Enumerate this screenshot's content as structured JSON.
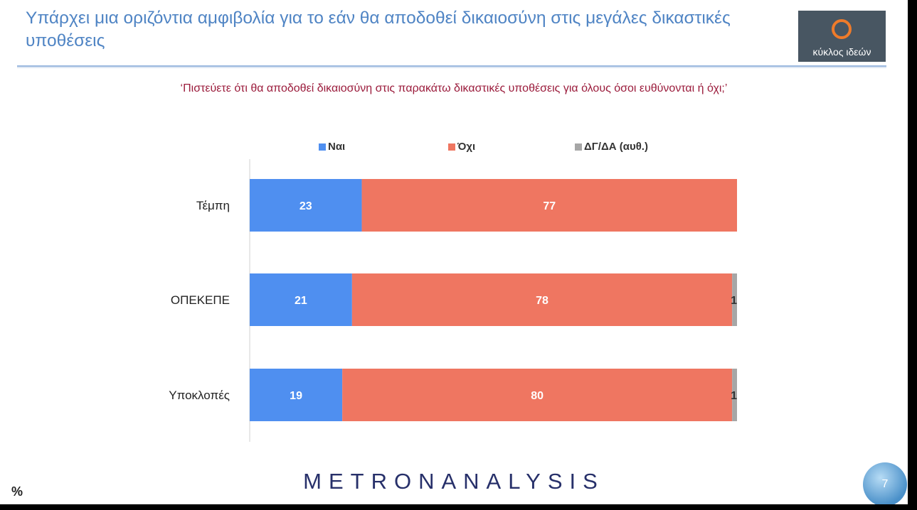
{
  "header": {
    "title": "Υπάρχει μια οριζόντια αμφιβολία για το εάν θα αποδοθεί δικαιοσύνη στις μεγάλες δικαστικές υποθέσεις",
    "logo_text": "κύκλος ιδεών"
  },
  "question": "‘Πιστεύετε ότι θα αποδοθεί δικαιοσύνη στις παρακάτω δικαστικές υποθέσεις για όλους όσοι ευθύνονται ή όχι;’",
  "footer": {
    "unit": "%",
    "brand": "METRONANALYSIS",
    "page_number": "7"
  },
  "chart_data": {
    "type": "bar",
    "orientation": "horizontal",
    "stacked": true,
    "categories": [
      "Τέμπη",
      "ΟΠΕΚΕΠΕ",
      "Υποκλοπές"
    ],
    "series": [
      {
        "name": "Ναι",
        "color": "#4f8ff0",
        "values": [
          23,
          21,
          19
        ]
      },
      {
        "name": "Όχι",
        "color": "#ef7661",
        "values": [
          77,
          78,
          80
        ]
      },
      {
        "name": "ΔΓ/ΔΑ (αυθ.)",
        "color": "#a6a6a6",
        "values": [
          0,
          1,
          1
        ]
      }
    ],
    "xlim": [
      0,
      100
    ],
    "legend": "top",
    "grid": false
  }
}
